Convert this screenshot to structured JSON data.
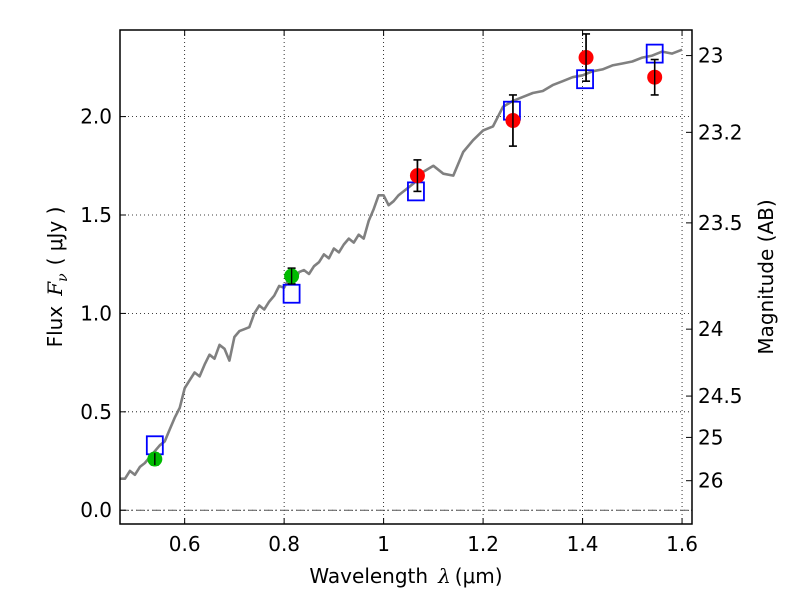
{
  "chart_data": {
    "type": "scatter",
    "xlabel": {
      "prefix": "Wavelength",
      "symbol": "λ",
      "units": "(μm)"
    },
    "ylabel": {
      "prefix": "Flux",
      "symbol": "F",
      "subscript": "ν",
      "units": "( μJy )"
    },
    "y2label": "Magnitude (AB)",
    "xlim": [
      0.47,
      1.62
    ],
    "ylim": [
      -0.07,
      2.44
    ],
    "x_ticks": [
      0.6,
      0.8,
      1.0,
      1.2,
      1.4,
      1.6
    ],
    "x_tick_labels": [
      "0.6",
      "0.8",
      "1",
      "1.2",
      "1.4",
      "1.6"
    ],
    "y_ticks": [
      0.0,
      0.5,
      1.0,
      1.5,
      2.0
    ],
    "y_tick_labels": [
      "0.0",
      "0.5",
      "1.0",
      "1.5",
      "2.0"
    ],
    "y2_ticks": [
      {
        "label": "23",
        "flux": 2.31
      },
      {
        "label": "23.2",
        "flux": 1.92
      },
      {
        "label": "23.5",
        "flux": 1.46
      },
      {
        "label": "24",
        "flux": 0.92
      },
      {
        "label": "24.5",
        "flux": 0.58
      },
      {
        "label": "25",
        "flux": 0.37
      },
      {
        "label": "26",
        "flux": 0.15
      }
    ],
    "grid": true,
    "series": [
      {
        "name": "model spectrum",
        "kind": "line",
        "color": "#808080",
        "x": [
          0.47,
          0.48,
          0.49,
          0.5,
          0.51,
          0.52,
          0.53,
          0.54,
          0.55,
          0.56,
          0.57,
          0.58,
          0.59,
          0.6,
          0.61,
          0.62,
          0.63,
          0.64,
          0.65,
          0.66,
          0.67,
          0.68,
          0.69,
          0.7,
          0.71,
          0.72,
          0.73,
          0.74,
          0.75,
          0.76,
          0.77,
          0.78,
          0.79,
          0.8,
          0.81,
          0.82,
          0.83,
          0.84,
          0.85,
          0.86,
          0.87,
          0.88,
          0.89,
          0.9,
          0.91,
          0.92,
          0.93,
          0.94,
          0.95,
          0.96,
          0.97,
          0.98,
          0.99,
          1.0,
          1.01,
          1.02,
          1.03,
          1.04,
          1.05,
          1.06,
          1.08,
          1.1,
          1.12,
          1.14,
          1.16,
          1.18,
          1.2,
          1.22,
          1.24,
          1.26,
          1.28,
          1.3,
          1.32,
          1.34,
          1.36,
          1.38,
          1.4,
          1.42,
          1.44,
          1.46,
          1.48,
          1.5,
          1.52,
          1.54,
          1.56,
          1.58,
          1.6
        ],
        "y": [
          0.16,
          0.16,
          0.2,
          0.18,
          0.22,
          0.24,
          0.27,
          0.3,
          0.33,
          0.35,
          0.41,
          0.47,
          0.52,
          0.62,
          0.66,
          0.7,
          0.68,
          0.74,
          0.79,
          0.77,
          0.84,
          0.82,
          0.76,
          0.88,
          0.91,
          0.92,
          0.93,
          1.0,
          1.04,
          1.02,
          1.06,
          1.09,
          1.14,
          1.13,
          1.18,
          1.16,
          1.21,
          1.22,
          1.2,
          1.24,
          1.26,
          1.3,
          1.28,
          1.33,
          1.31,
          1.35,
          1.38,
          1.36,
          1.4,
          1.38,
          1.47,
          1.53,
          1.6,
          1.6,
          1.55,
          1.57,
          1.6,
          1.62,
          1.64,
          1.66,
          1.72,
          1.75,
          1.71,
          1.7,
          1.82,
          1.88,
          1.93,
          1.95,
          2.05,
          2.08,
          2.1,
          2.12,
          2.13,
          2.16,
          2.18,
          2.2,
          2.21,
          2.23,
          2.24,
          2.26,
          2.27,
          2.28,
          2.3,
          2.31,
          2.33,
          2.32,
          2.34
        ]
      },
      {
        "name": "model photometry",
        "kind": "square",
        "color": "#0000ff",
        "x": [
          0.54,
          0.815,
          1.065,
          1.258,
          1.405,
          1.545
        ],
        "y": [
          0.33,
          1.1,
          1.62,
          2.03,
          2.19,
          2.32
        ]
      },
      {
        "name": "observed (red)",
        "kind": "circle",
        "color": "#ff0000",
        "x": [
          1.068,
          1.26,
          1.407,
          1.545
        ],
        "y": [
          1.7,
          1.98,
          2.3,
          2.2
        ],
        "err": [
          0.08,
          0.13,
          0.12,
          0.09
        ]
      },
      {
        "name": "observed (green)",
        "kind": "circle",
        "color": "#00bb00",
        "x": [
          0.54,
          0.815
        ],
        "y": [
          0.26,
          1.19
        ],
        "err": [
          0.03,
          0.04
        ]
      }
    ]
  }
}
